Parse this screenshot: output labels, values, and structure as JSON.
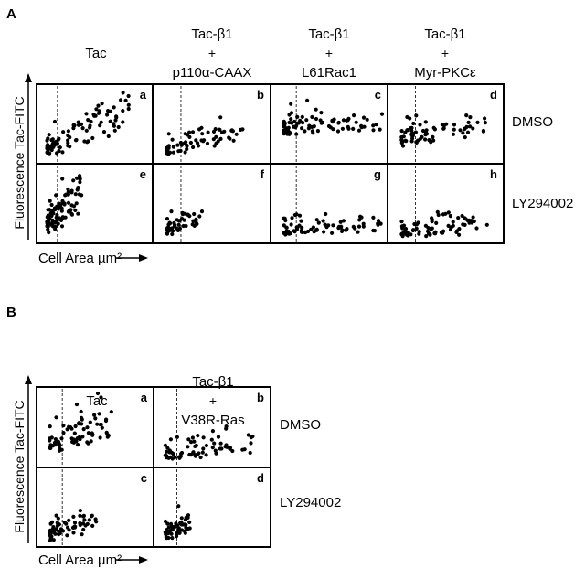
{
  "chart_data": [
    {
      "type": "scatter",
      "panel_label": "A",
      "columns": [
        {
          "title": "Tac"
        },
        {
          "title": "Tac-β1",
          "plus": "+",
          "subtitle": "p110α-CAAX"
        },
        {
          "title": "Tac-β1",
          "plus": "+",
          "subtitle": "L61Rac1"
        },
        {
          "title": "Tac-β1",
          "plus": "+",
          "subtitle": "Myr-PKCε"
        }
      ],
      "rows": [
        "DMSO",
        "LY294002"
      ],
      "ylabel": "Fluorescence Tac-FITC",
      "xlabel": "Cell Area µm²",
      "subplots": [
        {
          "letter": "a",
          "row": 0,
          "col": 0,
          "ref_x": 0.18
        },
        {
          "letter": "b",
          "row": 0,
          "col": 1,
          "ref_x": 0.24
        },
        {
          "letter": "c",
          "row": 0,
          "col": 2,
          "ref_x": 0.22
        },
        {
          "letter": "d",
          "row": 0,
          "col": 3,
          "ref_x": 0.24
        },
        {
          "letter": "e",
          "row": 1,
          "col": 0,
          "ref_x": 0.18
        },
        {
          "letter": "f",
          "row": 1,
          "col": 1,
          "ref_x": 0.24
        },
        {
          "letter": "g",
          "row": 1,
          "col": 2,
          "ref_x": 0.22
        },
        {
          "letter": "h",
          "row": 1,
          "col": 3,
          "ref_x": 0.24
        }
      ]
    },
    {
      "type": "scatter",
      "panel_label": "B",
      "columns": [
        {
          "title": "Tac"
        },
        {
          "title": "Tac-β1",
          "plus": "+",
          "subtitle": "V38R-Ras"
        }
      ],
      "rows": [
        "DMSO",
        "LY294002"
      ],
      "ylabel": "Fluorescence Tac-FITC",
      "xlabel": "Cell Area µm²",
      "subplots": [
        {
          "letter": "a",
          "row": 0,
          "col": 0,
          "ref_x": 0.22
        },
        {
          "letter": "b",
          "row": 0,
          "col": 1,
          "ref_x": 0.2
        },
        {
          "letter": "c",
          "row": 1,
          "col": 0,
          "ref_x": 0.22
        },
        {
          "letter": "d",
          "row": 1,
          "col": 1,
          "ref_x": 0.2
        }
      ]
    }
  ]
}
